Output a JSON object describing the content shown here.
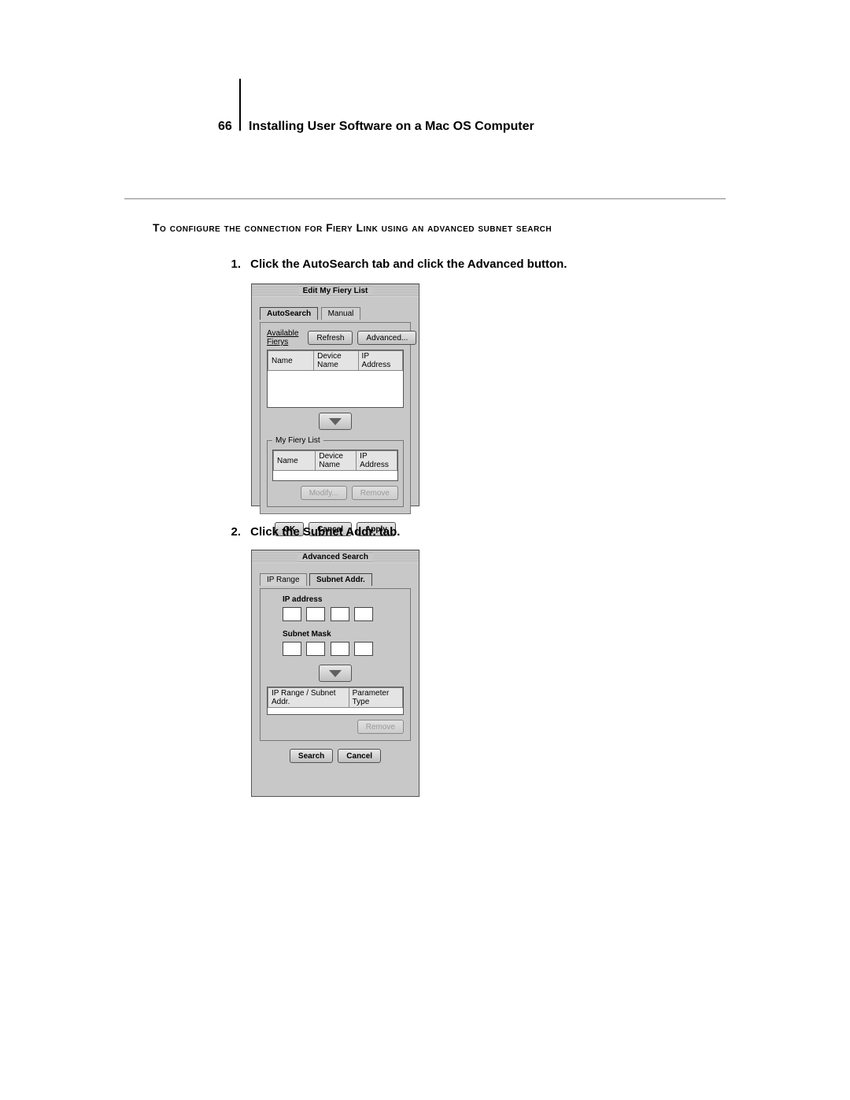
{
  "page_number": "66",
  "header_title": "Installing User Software on a Mac OS Computer",
  "section_heading": "To configure the connection for Fiery Link using an advanced subnet search",
  "steps": {
    "1": {
      "num": "1.",
      "text": "Click the AutoSearch tab and click the Advanced button."
    },
    "2": {
      "num": "2.",
      "text": "Click the Subnet Addr. tab."
    }
  },
  "dialog1": {
    "title": "Edit My Fiery List",
    "tabs": {
      "autosearch": "AutoSearch",
      "manual": "Manual"
    },
    "available_label": "Available Fierys",
    "refresh": "Refresh",
    "advanced": "Advanced...",
    "columns": {
      "name": "Name",
      "device": "Device Name",
      "ip": "IP Address"
    },
    "my_list_label": "My Fiery List",
    "modify": "Modify...",
    "remove": "Remove",
    "ok": "OK",
    "cancel": "Cancel",
    "apply": "Apply"
  },
  "dialog2": {
    "title": "Advanced Search",
    "tabs": {
      "iprange": "IP Range",
      "subnet": "Subnet Addr."
    },
    "ip_label": "IP address",
    "mask_label": "Subnet Mask",
    "columns": {
      "a": "IP Range / Subnet Addr.",
      "b": "Parameter Type"
    },
    "remove": "Remove",
    "search": "Search",
    "cancel": "Cancel"
  },
  "colors": {
    "page_bg": "#ffffff",
    "dialog_bg": "#c8c8c8",
    "border": "#555555",
    "text": "#000000",
    "disabled_text": "#9a9a9a"
  },
  "typography": {
    "body_font": "Arial",
    "dialog_font": "Lucida Grande / Geneva",
    "header_fontsize_pt": 12,
    "step_fontsize_pt": 11,
    "dialog_fontsize_pt": 8
  }
}
